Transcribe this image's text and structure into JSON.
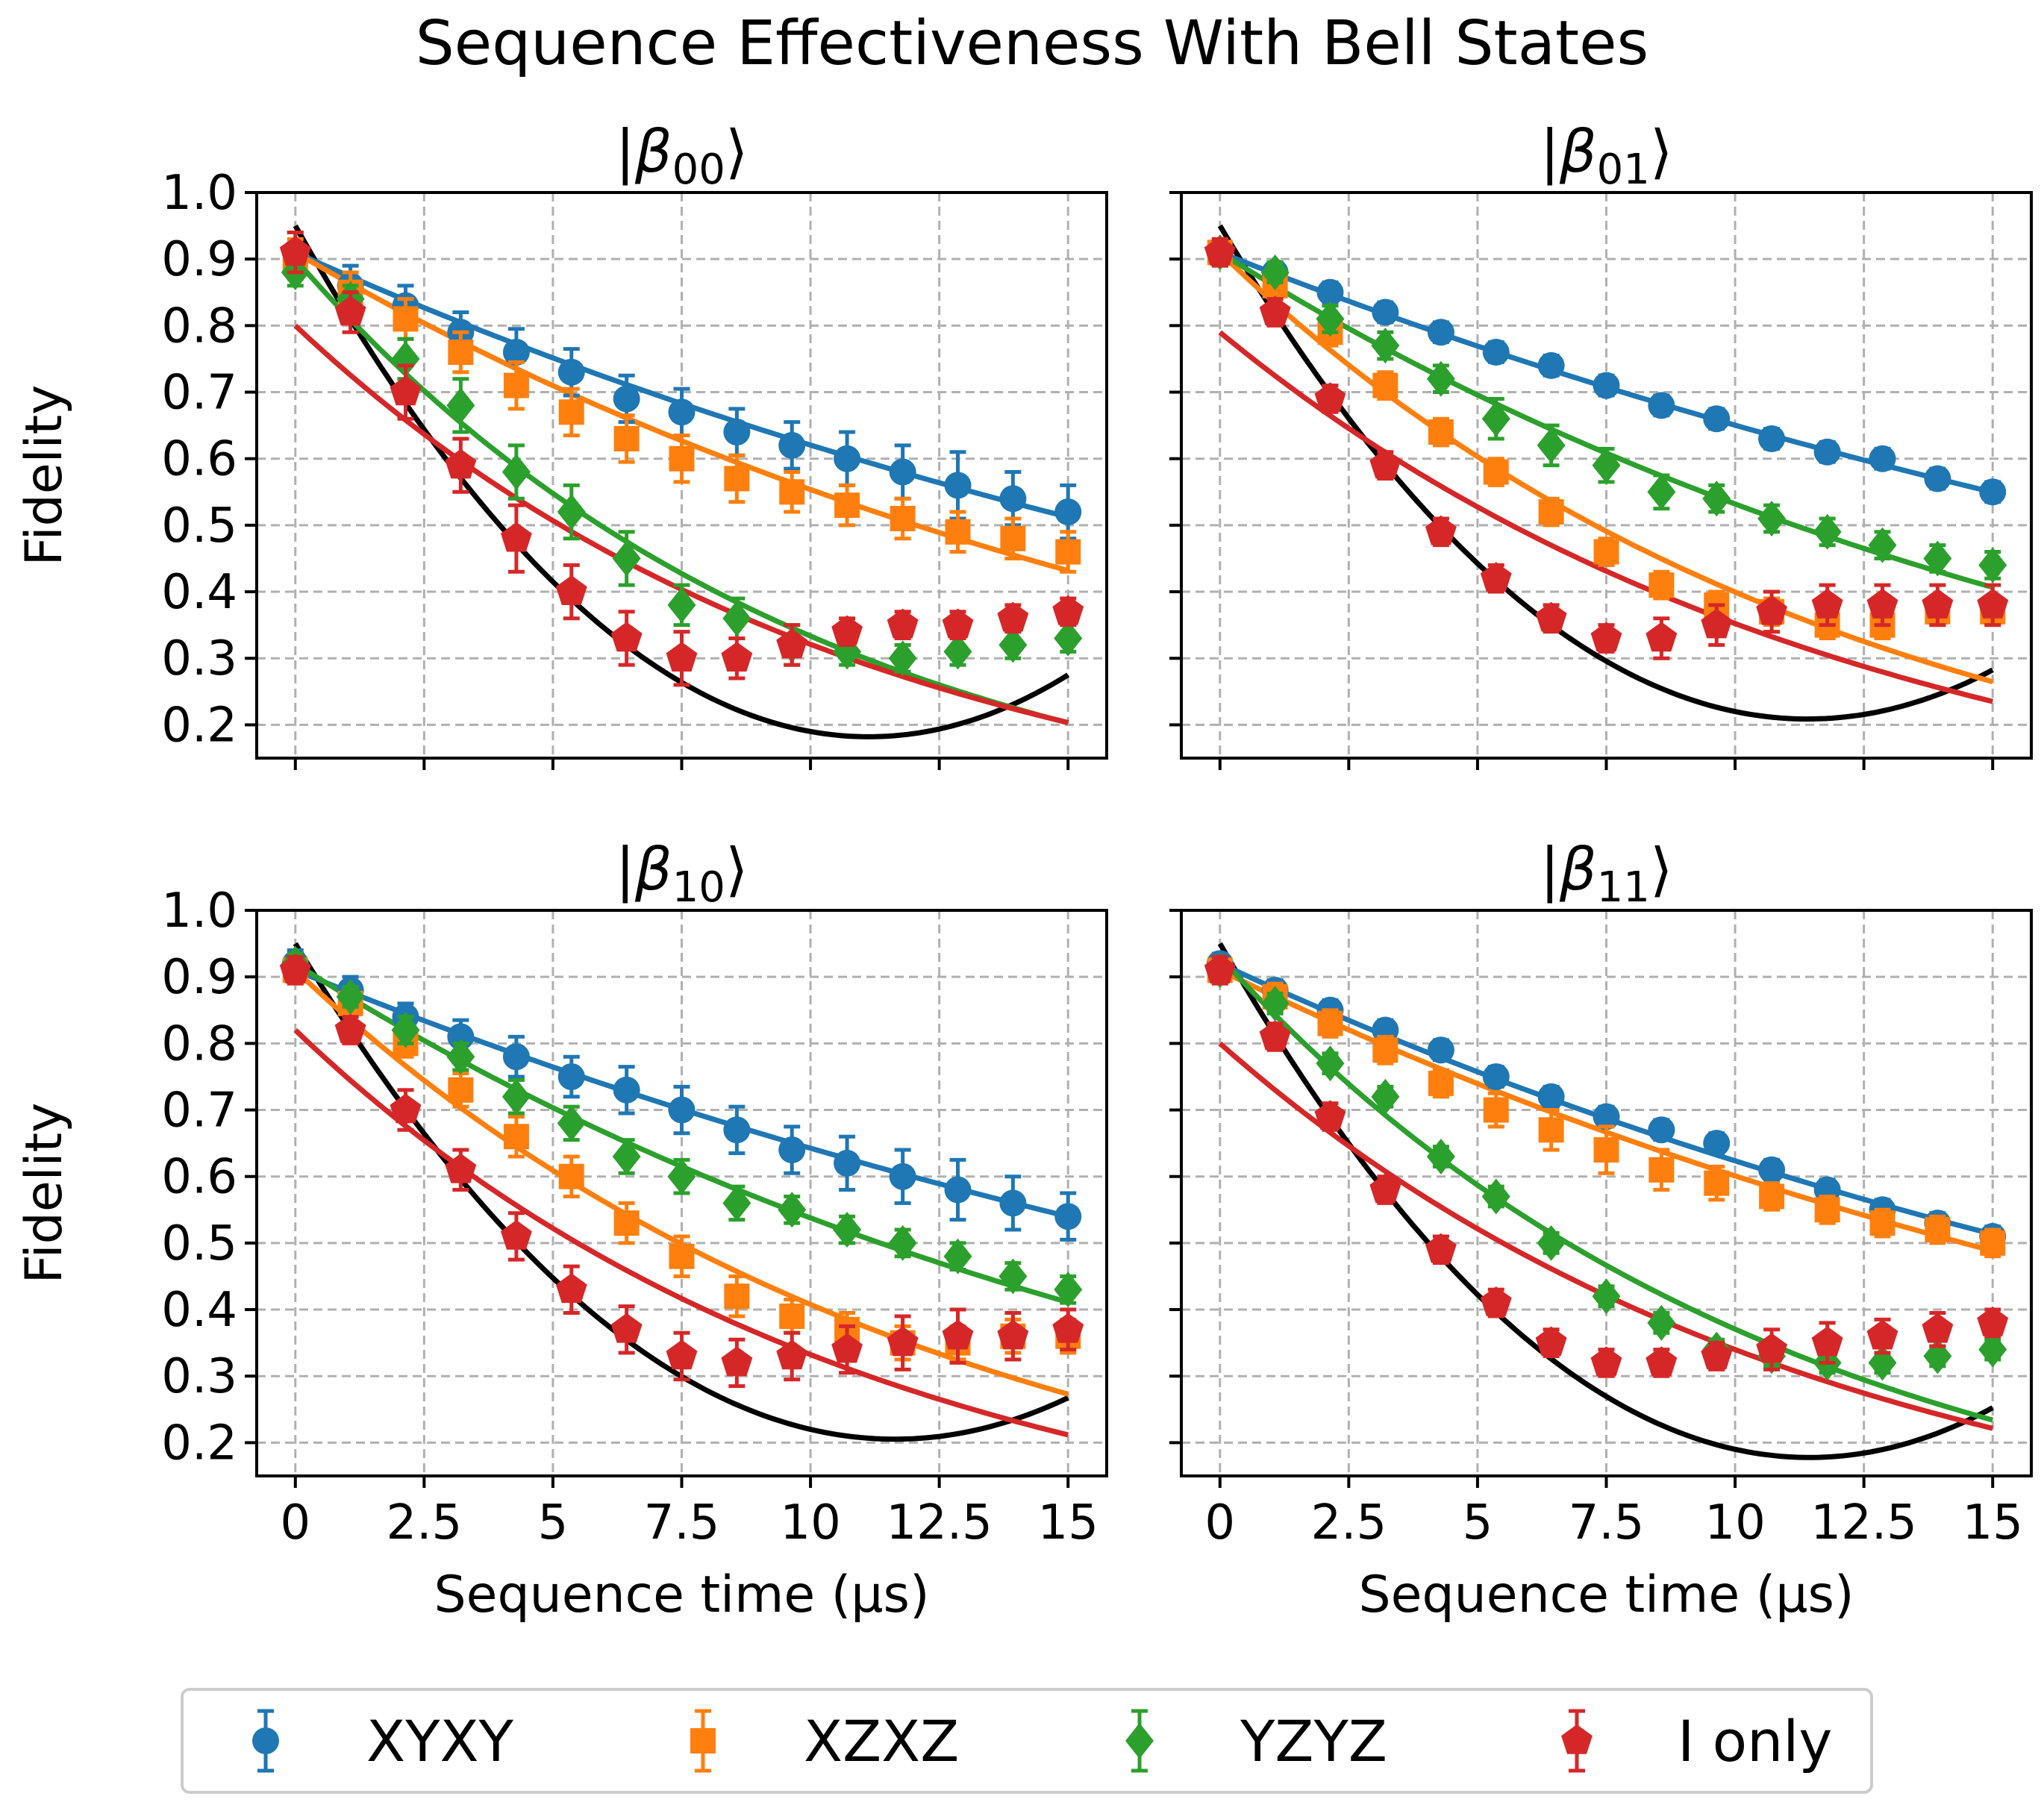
{
  "chart_data": {
    "type": "scatter",
    "title": "Sequence Effectiveness With Bell States",
    "xlabel": "Sequence time (μs)",
    "ylabel": "Fidelity",
    "xlim": [
      -0.75,
      15.75
    ],
    "ylim": [
      0.15,
      1.0
    ],
    "xticks": [
      0,
      2.5,
      5,
      7.5,
      10,
      12.5,
      15
    ],
    "xtick_labels": [
      "0",
      "2.5",
      "5",
      "7.5",
      "10",
      "12.5",
      "15"
    ],
    "yticks": [
      0.2,
      0.3,
      0.4,
      0.5,
      0.6,
      0.7,
      0.8,
      0.9,
      1.0
    ],
    "ytick_labels": [
      "0.2",
      "0.3",
      "0.4",
      "0.5",
      "0.6",
      "0.7",
      "0.8",
      "0.9",
      "1.0"
    ],
    "grid": true,
    "legend_position": "bottom-center",
    "series_meta": [
      {
        "name": "XYXY",
        "color": "#1f77b4",
        "marker": "circle"
      },
      {
        "name": "XZXZ",
        "color": "#ff7f0e",
        "marker": "square"
      },
      {
        "name": "YZYZ",
        "color": "#2ca02c",
        "marker": "diamond"
      },
      {
        "name": "I only",
        "color": "#d62728",
        "marker": "pentagon"
      }
    ],
    "x": [
      0,
      1.07,
      2.14,
      3.21,
      4.29,
      5.36,
      6.43,
      7.5,
      8.57,
      9.64,
      10.71,
      11.79,
      12.86,
      13.93,
      15
    ],
    "panels": [
      {
        "title_base": "|β",
        "title_sub": "00",
        "title_end": "⟩",
        "series": [
          {
            "name": "XYXY",
            "values": [
              0.91,
              0.86,
              0.83,
              0.79,
              0.76,
              0.73,
              0.69,
              0.67,
              0.64,
              0.62,
              0.6,
              0.58,
              0.56,
              0.54,
              0.52
            ],
            "errors": [
              0.03,
              0.03,
              0.03,
              0.03,
              0.035,
              0.035,
              0.035,
              0.035,
              0.035,
              0.035,
              0.04,
              0.04,
              0.05,
              0.04,
              0.04
            ],
            "fit": {
              "y0": 0.91,
              "k": 0.0383
            }
          },
          {
            "name": "XZXZ",
            "values": [
              0.9,
              0.85,
              0.81,
              0.76,
              0.71,
              0.67,
              0.63,
              0.6,
              0.57,
              0.55,
              0.53,
              0.51,
              0.49,
              0.48,
              0.46
            ],
            "errors": [
              0.03,
              0.03,
              0.03,
              0.03,
              0.035,
              0.035,
              0.035,
              0.035,
              0.035,
              0.03,
              0.03,
              0.03,
              0.03,
              0.03,
              0.03
            ],
            "fit": {
              "y0": 0.91,
              "k": 0.0497
            }
          },
          {
            "name": "YZYZ",
            "values": [
              0.88,
              0.84,
              0.75,
              0.68,
              0.58,
              0.52,
              0.45,
              0.38,
              0.36,
              0.32,
              0.31,
              0.3,
              0.31,
              0.32,
              0.33
            ],
            "errors": [
              0.02,
              0.02,
              0.03,
              0.04,
              0.04,
              0.04,
              0.04,
              0.03,
              0.03,
              0.03,
              0.02,
              0.02,
              0.02,
              0.02,
              0.02
            ],
            "fit": {
              "y0": 0.9,
              "k": 0.0993
            }
          },
          {
            "name": "I only",
            "values": [
              0.91,
              0.82,
              0.7,
              0.59,
              0.48,
              0.4,
              0.33,
              0.3,
              0.3,
              0.32,
              0.34,
              0.35,
              0.35,
              0.36,
              0.37
            ],
            "errors": [
              0.03,
              0.03,
              0.04,
              0.04,
              0.05,
              0.04,
              0.04,
              0.04,
              0.03,
              0.03,
              0.02,
              0.02,
              0.02,
              0.02,
              0.02
            ],
            "fit": {
              "y0": 0.8,
              "k": 0.0913
            }
          }
        ],
        "black_fit": [
          0.95,
          -0.138,
          0.0062
        ]
      },
      {
        "title_base": "|β",
        "title_sub": "01",
        "title_end": "⟩",
        "series": [
          {
            "name": "XYXY",
            "values": [
              0.91,
              0.88,
              0.85,
              0.82,
              0.79,
              0.76,
              0.74,
              0.71,
              0.68,
              0.66,
              0.63,
              0.61,
              0.6,
              0.57,
              0.55
            ],
            "errors": [
              0.015,
              0.015,
              0.015,
              0.015,
              0.015,
              0.015,
              0.015,
              0.015,
              0.015,
              0.015,
              0.015,
              0.015,
              0.015,
              0.015,
              0.015
            ],
            "fit": {
              "y0": 0.91,
              "k": 0.0336
            }
          },
          {
            "name": "XZXZ",
            "values": [
              0.91,
              0.86,
              0.79,
              0.71,
              0.64,
              0.58,
              0.52,
              0.46,
              0.41,
              0.38,
              0.37,
              0.35,
              0.35,
              0.37,
              0.37
            ],
            "errors": [
              0.02,
              0.02,
              0.02,
              0.02,
              0.02,
              0.02,
              0.02,
              0.02,
              0.02,
              0.02,
              0.02,
              0.02,
              0.02,
              0.02,
              0.02
            ],
            "fit": {
              "y0": 0.91,
              "k": 0.0823
            }
          },
          {
            "name": "YZYZ",
            "values": [
              0.91,
              0.88,
              0.81,
              0.77,
              0.72,
              0.66,
              0.62,
              0.59,
              0.55,
              0.54,
              0.51,
              0.49,
              0.47,
              0.45,
              0.44
            ],
            "errors": [
              0.015,
              0.015,
              0.02,
              0.02,
              0.02,
              0.03,
              0.03,
              0.025,
              0.025,
              0.02,
              0.02,
              0.02,
              0.02,
              0.02,
              0.02
            ],
            "fit": {
              "y0": 0.91,
              "k": 0.0537
            }
          },
          {
            "name": "I only",
            "values": [
              0.91,
              0.82,
              0.69,
              0.59,
              0.49,
              0.42,
              0.36,
              0.33,
              0.33,
              0.35,
              0.37,
              0.38,
              0.38,
              0.38,
              0.38
            ],
            "errors": [
              0.02,
              0.02,
              0.02,
              0.02,
              0.02,
              0.02,
              0.02,
              0.02,
              0.03,
              0.03,
              0.03,
              0.03,
              0.03,
              0.03,
              0.03
            ],
            "fit": {
              "y0": 0.79,
              "k": 0.0808
            }
          }
        ],
        "black_fit": [
          0.95,
          -0.13,
          0.0057
        ]
      },
      {
        "title_base": "|β",
        "title_sub": "10",
        "title_end": "⟩",
        "series": [
          {
            "name": "XYXY",
            "values": [
              0.92,
              0.88,
              0.84,
              0.81,
              0.78,
              0.75,
              0.73,
              0.7,
              0.67,
              0.64,
              0.62,
              0.6,
              0.58,
              0.56,
              0.54
            ],
            "errors": [
              0.02,
              0.02,
              0.02,
              0.025,
              0.03,
              0.03,
              0.035,
              0.035,
              0.035,
              0.035,
              0.04,
              0.04,
              0.045,
              0.04,
              0.035
            ],
            "fit": {
              "y0": 0.91,
              "k": 0.0348
            }
          },
          {
            "name": "XZXZ",
            "values": [
              0.91,
              0.86,
              0.8,
              0.73,
              0.66,
              0.6,
              0.53,
              0.48,
              0.42,
              0.39,
              0.37,
              0.35,
              0.35,
              0.36,
              0.36
            ],
            "errors": [
              0.02,
              0.02,
              0.02,
              0.025,
              0.03,
              0.03,
              0.03,
              0.03,
              0.03,
              0.025,
              0.025,
              0.025,
              0.025,
              0.025,
              0.025
            ],
            "fit": {
              "y0": 0.91,
              "k": 0.0803
            }
          },
          {
            "name": "YZYZ",
            "values": [
              0.92,
              0.87,
              0.82,
              0.78,
              0.72,
              0.68,
              0.63,
              0.6,
              0.56,
              0.55,
              0.52,
              0.5,
              0.48,
              0.45,
              0.43
            ],
            "errors": [
              0.015,
              0.015,
              0.02,
              0.02,
              0.025,
              0.025,
              0.025,
              0.025,
              0.025,
              0.02,
              0.02,
              0.02,
              0.02,
              0.02,
              0.02
            ],
            "fit": {
              "y0": 0.92,
              "k": 0.0537
            }
          },
          {
            "name": "I only",
            "values": [
              0.91,
              0.82,
              0.7,
              0.61,
              0.51,
              0.43,
              0.37,
              0.33,
              0.32,
              0.33,
              0.34,
              0.35,
              0.36,
              0.36,
              0.37
            ],
            "errors": [
              0.02,
              0.02,
              0.03,
              0.03,
              0.035,
              0.035,
              0.035,
              0.035,
              0.035,
              0.035,
              0.035,
              0.04,
              0.04,
              0.035,
              0.03
            ],
            "fit": {
              "y0": 0.82,
              "k": 0.0903
            }
          }
        ],
        "black_fit": [
          0.95,
          -0.128,
          0.0055
        ]
      },
      {
        "title_base": "|β",
        "title_sub": "11",
        "title_end": "⟩",
        "series": [
          {
            "name": "XYXY",
            "values": [
              0.92,
              0.88,
              0.85,
              0.82,
              0.79,
              0.75,
              0.72,
              0.69,
              0.67,
              0.65,
              0.61,
              0.58,
              0.55,
              0.53,
              0.51
            ],
            "errors": [
              0.015,
              0.015,
              0.015,
              0.015,
              0.015,
              0.015,
              0.015,
              0.015,
              0.015,
              0.015,
              0.015,
              0.015,
              0.015,
              0.015,
              0.015
            ],
            "fit": {
              "y0": 0.92,
              "k": 0.0389
            }
          },
          {
            "name": "XZXZ",
            "values": [
              0.91,
              0.87,
              0.83,
              0.79,
              0.74,
              0.7,
              0.67,
              0.64,
              0.61,
              0.59,
              0.57,
              0.55,
              0.53,
              0.52,
              0.5
            ],
            "errors": [
              0.02,
              0.02,
              0.02,
              0.02,
              0.02,
              0.025,
              0.03,
              0.035,
              0.03,
              0.025,
              0.02,
              0.02,
              0.02,
              0.02,
              0.02
            ],
            "fit": {
              "y0": 0.91,
              "k": 0.0415
            }
          },
          {
            "name": "YZYZ",
            "values": [
              0.91,
              0.86,
              0.77,
              0.72,
              0.63,
              0.57,
              0.5,
              0.42,
              0.38,
              0.34,
              0.33,
              0.32,
              0.32,
              0.33,
              0.34
            ],
            "errors": [
              0.015,
              0.015,
              0.015,
              0.015,
              0.015,
              0.015,
              0.015,
              0.015,
              0.015,
              0.015,
              0.015,
              0.015,
              0.015,
              0.015,
              0.015
            ],
            "fit": {
              "y0": 0.93,
              "k": 0.092
            }
          },
          {
            "name": "I only",
            "values": [
              0.91,
              0.81,
              0.69,
              0.58,
              0.49,
              0.41,
              0.35,
              0.32,
              0.32,
              0.33,
              0.34,
              0.35,
              0.36,
              0.37,
              0.38
            ],
            "errors": [
              0.02,
              0.02,
              0.02,
              0.02,
              0.02,
              0.02,
              0.02,
              0.02,
              0.02,
              0.02,
              0.03,
              0.03,
              0.025,
              0.025,
              0.02
            ],
            "fit": {
              "y0": 0.8,
              "k": 0.0856
            }
          }
        ],
        "black_fit": [
          0.95,
          -0.135,
          0.0059
        ]
      }
    ]
  }
}
